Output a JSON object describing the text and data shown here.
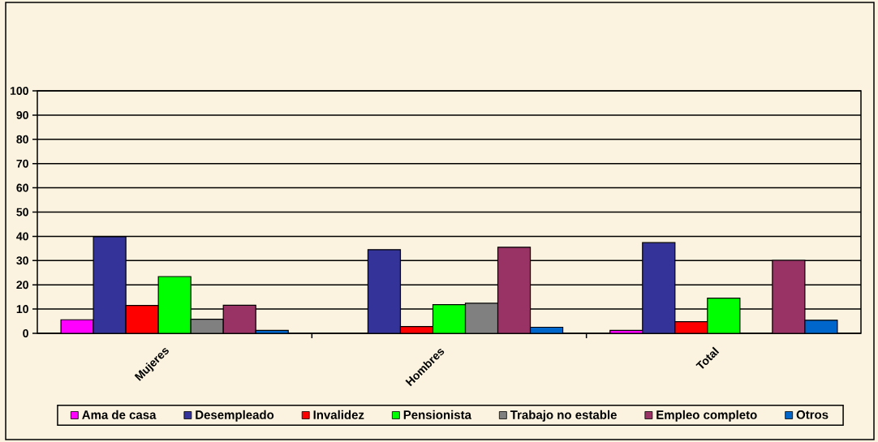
{
  "chart_data": {
    "type": "bar",
    "categories": [
      "Mujeres",
      "Hombres",
      "Total"
    ],
    "series": [
      {
        "name": "Ama de casa",
        "color": "#ff00ff",
        "values": [
          5.6,
          0,
          1.2
        ]
      },
      {
        "name": "Desempleado",
        "color": "#333399",
        "values": [
          39.8,
          34.5,
          37.4
        ]
      },
      {
        "name": "Invalidez",
        "color": "#ff0000",
        "values": [
          11.5,
          2.8,
          4.8
        ]
      },
      {
        "name": "Pensionista",
        "color": "#00ff00",
        "values": [
          23.4,
          11.8,
          14.5
        ]
      },
      {
        "name": "Trabajo no estable",
        "color": "#808080",
        "values": [
          5.8,
          12.4,
          0
        ]
      },
      {
        "name": "Empleo completo",
        "color": "#993366",
        "values": [
          11.6,
          35.5,
          30.1
        ]
      },
      {
        "name": "Otros",
        "color": "#0066cc",
        "values": [
          1.2,
          2.5,
          5.4
        ]
      }
    ],
    "ylim": [
      0,
      100
    ],
    "yticks": [
      0,
      10,
      20,
      30,
      40,
      50,
      60,
      70,
      80,
      90,
      100
    ],
    "grid": "y",
    "legend": "bottom"
  }
}
